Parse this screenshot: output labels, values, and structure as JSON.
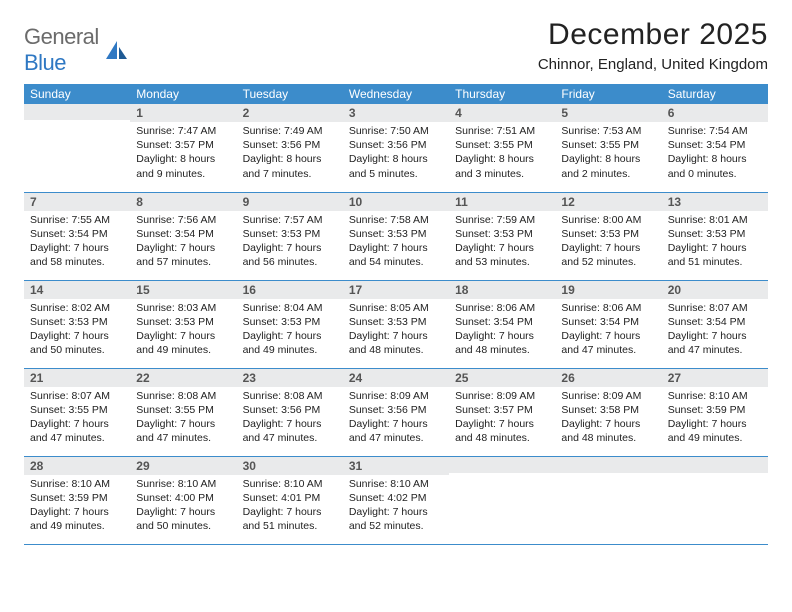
{
  "brand": {
    "part1": "General",
    "part2": "Blue"
  },
  "title": "December 2025",
  "location": "Chinnor, England, United Kingdom",
  "colors": {
    "header_bg": "#3c8ccb",
    "header_text": "#ffffff",
    "daynum_bg": "#e9eaeb",
    "row_border": "#3c8ccb",
    "brand_gray": "#6b6b6b",
    "brand_blue": "#2f78c3",
    "page_bg": "#ffffff",
    "text": "#222222"
  },
  "dayHeaders": [
    "Sunday",
    "Monday",
    "Tuesday",
    "Wednesday",
    "Thursday",
    "Friday",
    "Saturday"
  ],
  "weeks": [
    [
      null,
      {
        "n": "1",
        "sr": "7:47 AM",
        "ss": "3:57 PM",
        "dl": "8 hours and 9 minutes."
      },
      {
        "n": "2",
        "sr": "7:49 AM",
        "ss": "3:56 PM",
        "dl": "8 hours and 7 minutes."
      },
      {
        "n": "3",
        "sr": "7:50 AM",
        "ss": "3:56 PM",
        "dl": "8 hours and 5 minutes."
      },
      {
        "n": "4",
        "sr": "7:51 AM",
        "ss": "3:55 PM",
        "dl": "8 hours and 3 minutes."
      },
      {
        "n": "5",
        "sr": "7:53 AM",
        "ss": "3:55 PM",
        "dl": "8 hours and 2 minutes."
      },
      {
        "n": "6",
        "sr": "7:54 AM",
        "ss": "3:54 PM",
        "dl": "8 hours and 0 minutes."
      }
    ],
    [
      {
        "n": "7",
        "sr": "7:55 AM",
        "ss": "3:54 PM",
        "dl": "7 hours and 58 minutes."
      },
      {
        "n": "8",
        "sr": "7:56 AM",
        "ss": "3:54 PM",
        "dl": "7 hours and 57 minutes."
      },
      {
        "n": "9",
        "sr": "7:57 AM",
        "ss": "3:53 PM",
        "dl": "7 hours and 56 minutes."
      },
      {
        "n": "10",
        "sr": "7:58 AM",
        "ss": "3:53 PM",
        "dl": "7 hours and 54 minutes."
      },
      {
        "n": "11",
        "sr": "7:59 AM",
        "ss": "3:53 PM",
        "dl": "7 hours and 53 minutes."
      },
      {
        "n": "12",
        "sr": "8:00 AM",
        "ss": "3:53 PM",
        "dl": "7 hours and 52 minutes."
      },
      {
        "n": "13",
        "sr": "8:01 AM",
        "ss": "3:53 PM",
        "dl": "7 hours and 51 minutes."
      }
    ],
    [
      {
        "n": "14",
        "sr": "8:02 AM",
        "ss": "3:53 PM",
        "dl": "7 hours and 50 minutes."
      },
      {
        "n": "15",
        "sr": "8:03 AM",
        "ss": "3:53 PM",
        "dl": "7 hours and 49 minutes."
      },
      {
        "n": "16",
        "sr": "8:04 AM",
        "ss": "3:53 PM",
        "dl": "7 hours and 49 minutes."
      },
      {
        "n": "17",
        "sr": "8:05 AM",
        "ss": "3:53 PM",
        "dl": "7 hours and 48 minutes."
      },
      {
        "n": "18",
        "sr": "8:06 AM",
        "ss": "3:54 PM",
        "dl": "7 hours and 48 minutes."
      },
      {
        "n": "19",
        "sr": "8:06 AM",
        "ss": "3:54 PM",
        "dl": "7 hours and 47 minutes."
      },
      {
        "n": "20",
        "sr": "8:07 AM",
        "ss": "3:54 PM",
        "dl": "7 hours and 47 minutes."
      }
    ],
    [
      {
        "n": "21",
        "sr": "8:07 AM",
        "ss": "3:55 PM",
        "dl": "7 hours and 47 minutes."
      },
      {
        "n": "22",
        "sr": "8:08 AM",
        "ss": "3:55 PM",
        "dl": "7 hours and 47 minutes."
      },
      {
        "n": "23",
        "sr": "8:08 AM",
        "ss": "3:56 PM",
        "dl": "7 hours and 47 minutes."
      },
      {
        "n": "24",
        "sr": "8:09 AM",
        "ss": "3:56 PM",
        "dl": "7 hours and 47 minutes."
      },
      {
        "n": "25",
        "sr": "8:09 AM",
        "ss": "3:57 PM",
        "dl": "7 hours and 48 minutes."
      },
      {
        "n": "26",
        "sr": "8:09 AM",
        "ss": "3:58 PM",
        "dl": "7 hours and 48 minutes."
      },
      {
        "n": "27",
        "sr": "8:10 AM",
        "ss": "3:59 PM",
        "dl": "7 hours and 49 minutes."
      }
    ],
    [
      {
        "n": "28",
        "sr": "8:10 AM",
        "ss": "3:59 PM",
        "dl": "7 hours and 49 minutes."
      },
      {
        "n": "29",
        "sr": "8:10 AM",
        "ss": "4:00 PM",
        "dl": "7 hours and 50 minutes."
      },
      {
        "n": "30",
        "sr": "8:10 AM",
        "ss": "4:01 PM",
        "dl": "7 hours and 51 minutes."
      },
      {
        "n": "31",
        "sr": "8:10 AM",
        "ss": "4:02 PM",
        "dl": "7 hours and 52 minutes."
      },
      null,
      null,
      null
    ]
  ],
  "labels": {
    "sunrise": "Sunrise:",
    "sunset": "Sunset:",
    "daylight": "Daylight:"
  }
}
